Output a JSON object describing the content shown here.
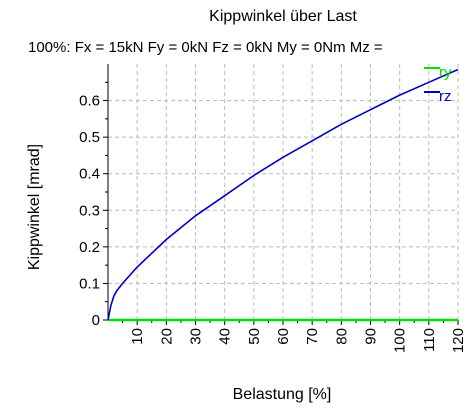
{
  "chart_data": {
    "type": "line",
    "title": "Kippwinkel über Last",
    "subtitle": "100%: Fx = 15kN Fy = 0kN Fz = 0kN My = 0Nm Mz =",
    "xlabel": "Belastung [%]",
    "ylabel": "Kippwinkel [mrad]",
    "xlim": [
      0,
      120
    ],
    "ylim": [
      0,
      0.7
    ],
    "xticks": [
      10,
      20,
      30,
      40,
      50,
      60,
      70,
      80,
      90,
      100,
      110,
      120
    ],
    "yticks": [
      0,
      0.1,
      0.2,
      0.3,
      0.4,
      0.5,
      0.6
    ],
    "grid": true,
    "legend_position": "top-right",
    "series": [
      {
        "name": "ry",
        "color": "#00e000",
        "x": [
          0,
          10,
          20,
          30,
          40,
          50,
          60,
          70,
          80,
          90,
          100,
          110,
          120
        ],
        "y": [
          0,
          0,
          0,
          0,
          0,
          0,
          0,
          0,
          0,
          0,
          0,
          0,
          0
        ]
      },
      {
        "name": "rz",
        "color": "#0000c0",
        "x": [
          0,
          1,
          2,
          3,
          5,
          10,
          20,
          30,
          40,
          50,
          60,
          70,
          80,
          90,
          100,
          110,
          120
        ],
        "y": [
          0,
          0.04,
          0.065,
          0.08,
          0.1,
          0.145,
          0.22,
          0.285,
          0.34,
          0.395,
          0.445,
          0.49,
          0.535,
          0.575,
          0.615,
          0.65,
          0.685
        ]
      }
    ]
  }
}
